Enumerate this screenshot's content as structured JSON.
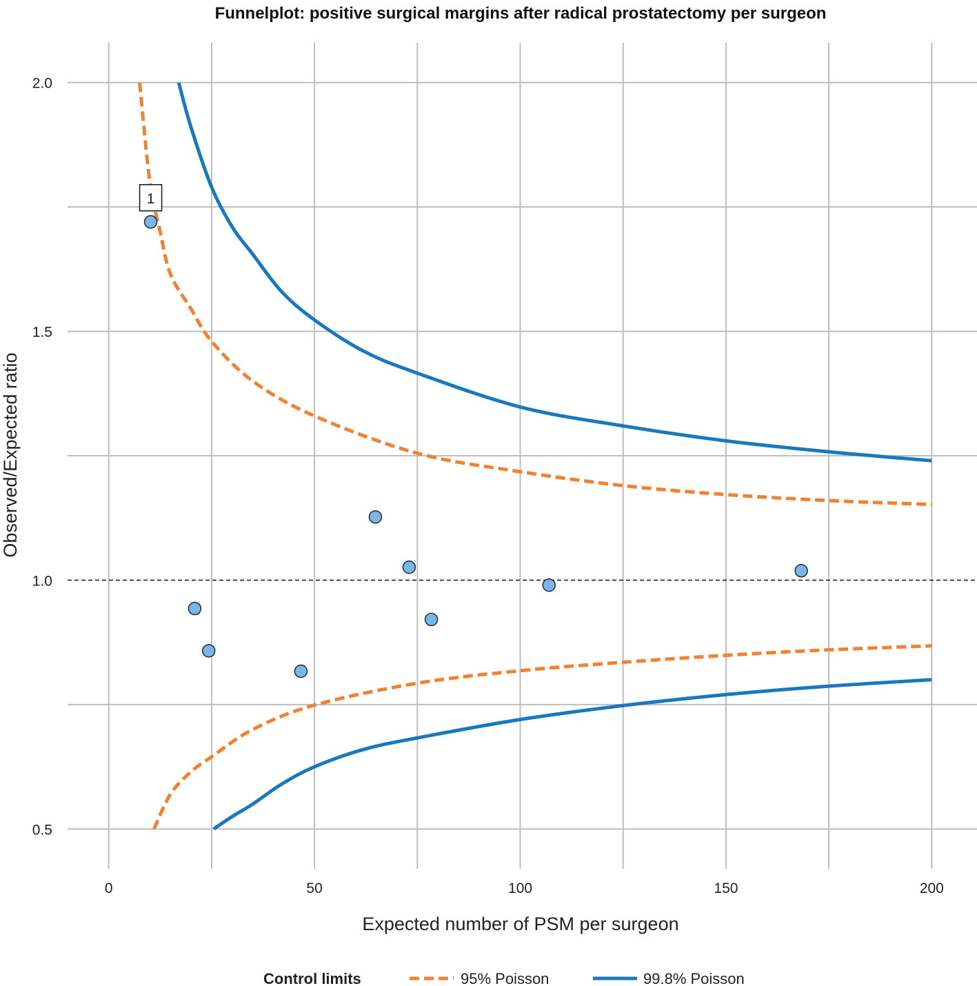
{
  "chart_data": {
    "type": "scatter",
    "title": "Funnelplot: positive surgical margins after radical prostatectomy per surgeon",
    "xlabel": "Expected number of PSM per surgeon",
    "ylabel": "Observed/Expected ratio",
    "xlim": [
      -10,
      211
    ],
    "ylim": [
      0.42,
      2.08
    ],
    "grid": true,
    "x_ticks": [
      0,
      50,
      100,
      150,
      200
    ],
    "x_tick_labels": [
      "0",
      "50",
      "100",
      "150",
      "200"
    ],
    "x_minor_grid": [
      25,
      75,
      125,
      175
    ],
    "y_ticks": [
      0.5,
      1.0,
      1.5,
      2.0
    ],
    "y_tick_labels": [
      "0.5",
      "1.0",
      "1.5",
      "2.0"
    ],
    "y_minor_grid": [
      0.75,
      1.25,
      1.75
    ],
    "reference_line": 1.0,
    "points": [
      {
        "x": 10.2,
        "y": 1.72,
        "label": "1"
      },
      {
        "x": 20.9,
        "y": 0.943
      },
      {
        "x": 24.3,
        "y": 0.858
      },
      {
        "x": 46.7,
        "y": 0.817
      },
      {
        "x": 64.8,
        "y": 1.127
      },
      {
        "x": 73.0,
        "y": 1.026
      },
      {
        "x": 78.4,
        "y": 0.921
      },
      {
        "x": 107.0,
        "y": 0.99
      },
      {
        "x": 168.3,
        "y": 1.019
      }
    ],
    "point_color": "#7cb6e6",
    "legend": {
      "title": "Control limits",
      "position": "bottom",
      "entries": [
        "95% Poisson",
        "99.8% Poisson"
      ]
    },
    "series": [
      {
        "name": "95% Poisson",
        "bound": "upper",
        "color": "#f28131",
        "dash": true,
        "x": [
          7.5,
          10,
          12.5,
          15,
          20,
          25,
          35,
          50,
          75,
          100,
          125,
          150,
          175,
          200
        ],
        "y": [
          2.0,
          1.8,
          1.7,
          1.615,
          1.545,
          1.48,
          1.4,
          1.33,
          1.255,
          1.218,
          1.19,
          1.172,
          1.16,
          1.152
        ]
      },
      {
        "name": "95% Poisson",
        "bound": "lower",
        "color": "#f28131",
        "dash": true,
        "x": [
          11,
          15,
          20,
          25,
          35,
          50,
          75,
          100,
          125,
          150,
          175,
          200
        ],
        "y": [
          0.5,
          0.57,
          0.615,
          0.645,
          0.7,
          0.749,
          0.793,
          0.818,
          0.835,
          0.849,
          0.86,
          0.868
        ]
      },
      {
        "name": "99.8% Poisson",
        "bound": "upper",
        "color": "#1a78bd",
        "dash": false,
        "x": [
          17,
          20,
          25,
          30,
          35,
          42,
          50,
          62,
          75,
          100,
          125,
          150,
          175,
          200
        ],
        "y": [
          2.0,
          1.91,
          1.79,
          1.71,
          1.655,
          1.58,
          1.523,
          1.46,
          1.416,
          1.348,
          1.31,
          1.28,
          1.258,
          1.24
        ]
      },
      {
        "name": "99.8% Poisson",
        "bound": "lower",
        "color": "#1a78bd",
        "dash": false,
        "x": [
          25.5,
          30,
          35,
          42,
          50,
          62,
          75,
          100,
          125,
          150,
          175,
          200
        ],
        "y": [
          0.5,
          0.525,
          0.55,
          0.59,
          0.625,
          0.66,
          0.683,
          0.72,
          0.748,
          0.77,
          0.787,
          0.8
        ]
      }
    ]
  }
}
